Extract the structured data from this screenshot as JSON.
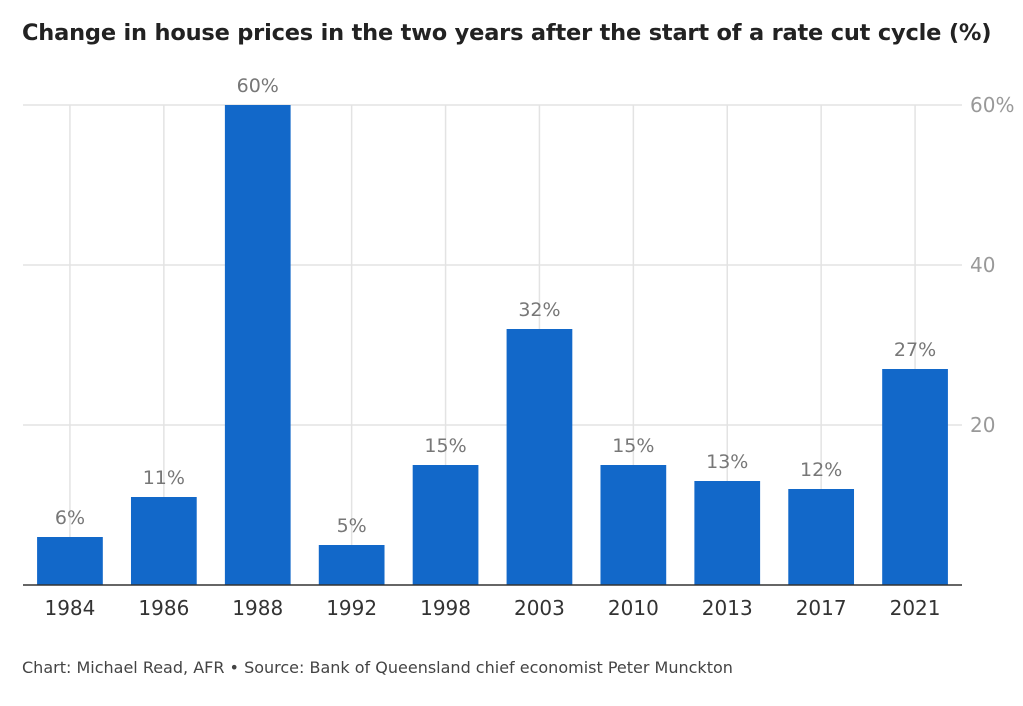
{
  "chart_data": {
    "type": "bar",
    "title": "Change in house prices in the two years after the start of a rate cut cycle (%)",
    "categories": [
      "1984",
      "1986",
      "1988",
      "1992",
      "1998",
      "2003",
      "2010",
      "2013",
      "2017",
      "2021"
    ],
    "values": [
      6,
      11,
      60,
      5,
      15,
      32,
      15,
      13,
      12,
      27
    ],
    "data_labels": [
      "6%",
      "11%",
      "60%",
      "5%",
      "15%",
      "32%",
      "15%",
      "13%",
      "12%",
      "27%"
    ],
    "ylim": [
      0,
      60
    ],
    "y_ticks": [
      20,
      40,
      60
    ],
    "y_tick_labels": [
      "20",
      "40",
      "60%"
    ],
    "y_axis_side": "right",
    "grid": true,
    "bar_color": "#1268c9",
    "footer": "Chart: Michael Read, AFR • Source: Bank of Queensland chief economist Peter Munckton"
  }
}
